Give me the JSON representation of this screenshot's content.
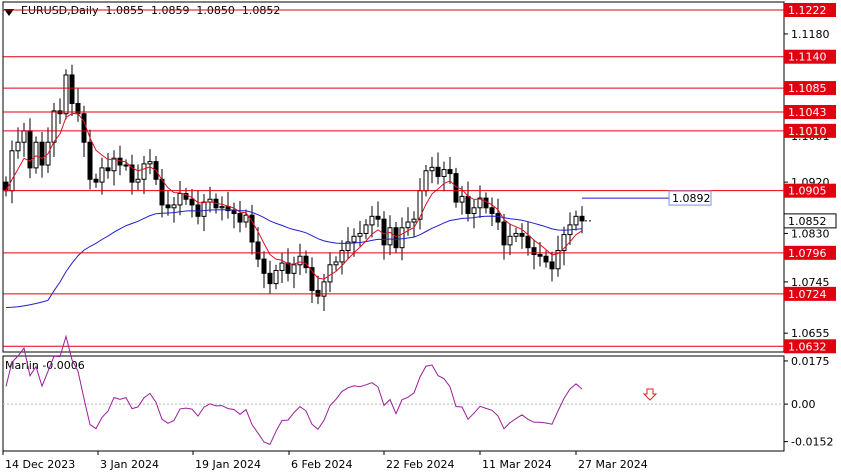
{
  "header": {
    "symbol_line": "EURUSD,Daily  1.0855  1.0859  1.0850  1.0852"
  },
  "indicator": {
    "label": "Marlin -0.0006",
    "scale": [
      "0.0175",
      "0.00",
      "-0.0152"
    ]
  },
  "price_scale": [
    "1.1180",
    "1.1085",
    "1.1001",
    "1.0920",
    "1.0830",
    "1.0745",
    "1.0655"
  ],
  "dates": [
    "14 Dec 2023",
    "3 Jan 2024",
    "19 Jan 2024",
    "6 Feb 2024",
    "22 Feb 2024",
    "11 Mar 2024",
    "27 Mar 2024"
  ],
  "levels": [
    "1.1222",
    "1.1140",
    "1.1085",
    "1.1043",
    "1.1010",
    "1.0905",
    "1.0796",
    "1.0724",
    "1.0632"
  ],
  "ma_label": "1.0892",
  "current_price": "1.0852",
  "colors": {
    "level_line": "#e0000f",
    "level_badge": "#e0000f",
    "ma_blue": "#1f1fd0",
    "ma_red": "#e01020",
    "oscillator": "#9b1f9b",
    "arrow": "#e02020",
    "ma_badge_text": "#2a4fd8"
  }
}
